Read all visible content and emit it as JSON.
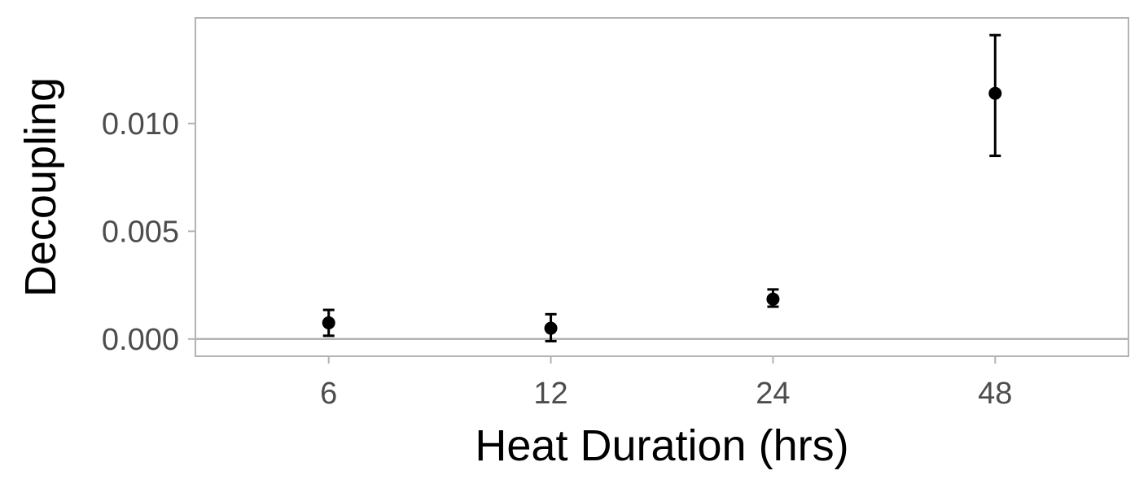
{
  "chart_data": {
    "type": "scatter",
    "title": "",
    "xlabel": "Heat Duration (hrs)",
    "ylabel": "Decoupling",
    "categories": [
      "6",
      "12",
      "24",
      "48"
    ],
    "values": [
      0.00075,
      0.0005,
      0.00185,
      0.0114
    ],
    "error_low": [
      0.00015,
      -0.0001,
      0.0015,
      0.0085
    ],
    "error_high": [
      0.00135,
      0.00115,
      0.0023,
      0.0141
    ],
    "ylim": [
      -0.0008,
      0.0149
    ],
    "yticks": [
      0.0,
      0.005,
      0.01
    ],
    "ytick_labels": [
      "0.000",
      "0.005",
      "0.010"
    ],
    "hline": 0.0,
    "grid": false,
    "legend": "none",
    "colors": {
      "points": "#000000",
      "frame": "#b3b3b3",
      "hline": "#b3b3b3",
      "tick_text": "#4d4d4d",
      "title_text": "#000000"
    }
  }
}
